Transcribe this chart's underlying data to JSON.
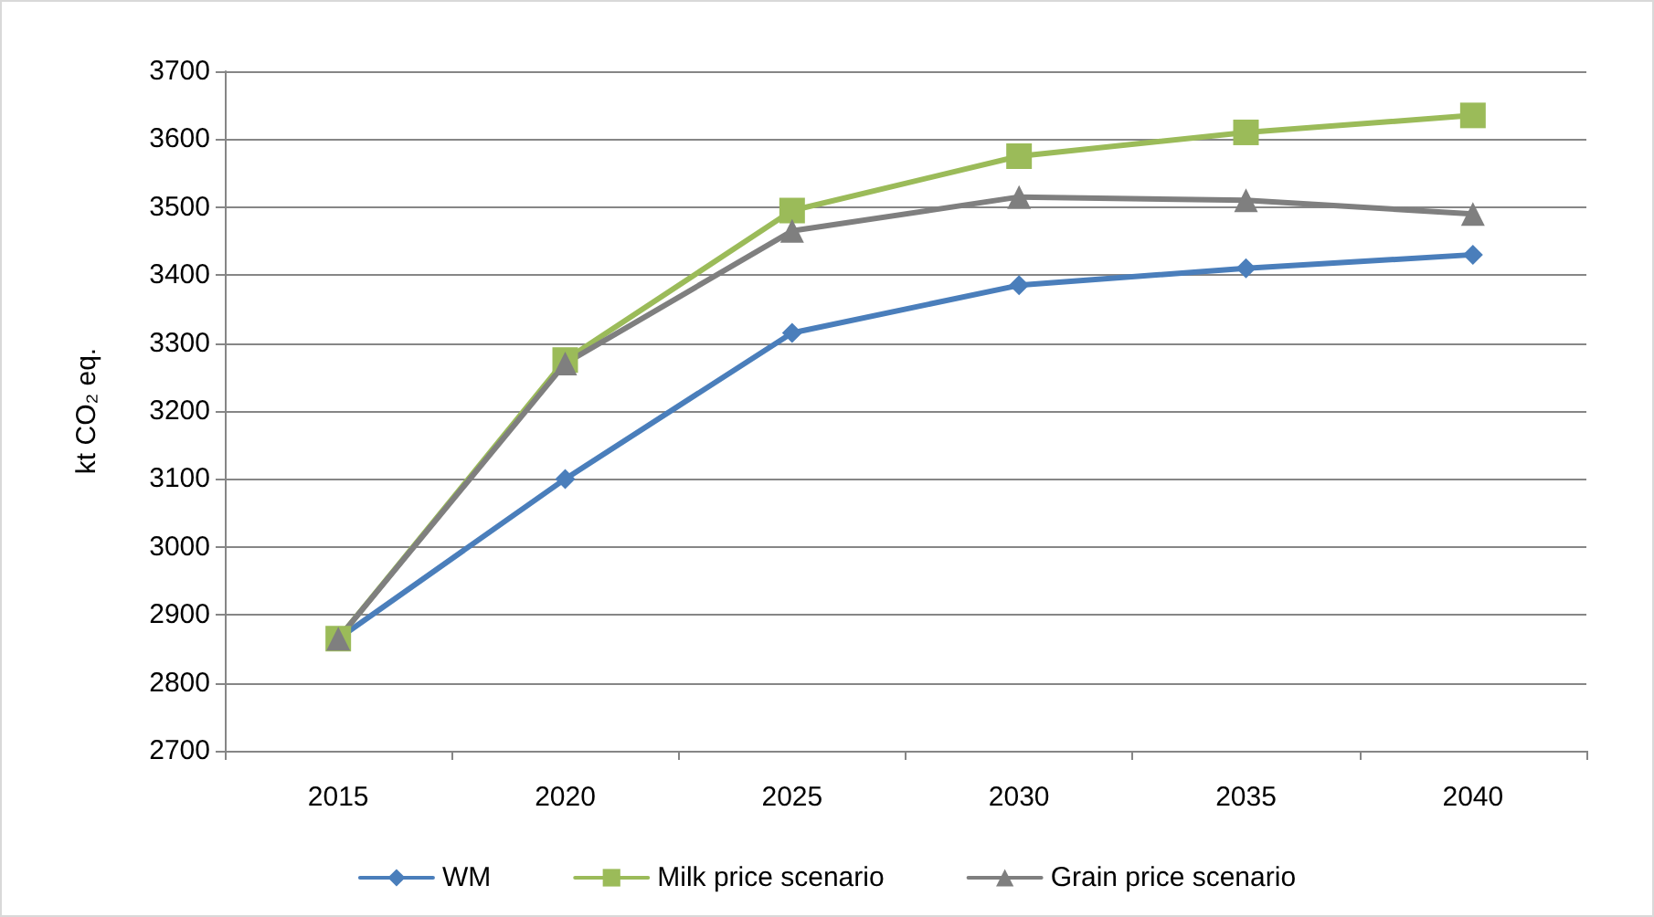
{
  "chart_data": {
    "type": "line",
    "ylabel": "kt CO₂ eq.",
    "categories": [
      "2015",
      "2020",
      "2025",
      "2030",
      "2035",
      "2040"
    ],
    "series": [
      {
        "name": "WM",
        "color": "#4a7ebb",
        "marker": "diamond",
        "values": [
          2865,
          3100,
          3315,
          3385,
          3410,
          3430
        ]
      },
      {
        "name": "Milk price scenario",
        "color": "#9bbb59",
        "marker": "square",
        "values": [
          2865,
          3275,
          3495,
          3575,
          3610,
          3635
        ]
      },
      {
        "name": "Grain price scenario",
        "color": "#7f7f7f",
        "marker": "triangle",
        "values": [
          2865,
          3270,
          3465,
          3515,
          3510,
          3490
        ]
      }
    ],
    "ylim": [
      2700,
      3700
    ],
    "yticks": [
      2700,
      2800,
      2900,
      3000,
      3100,
      3200,
      3300,
      3400,
      3500,
      3600,
      3700
    ],
    "grid": "y",
    "legend": "bottom"
  }
}
